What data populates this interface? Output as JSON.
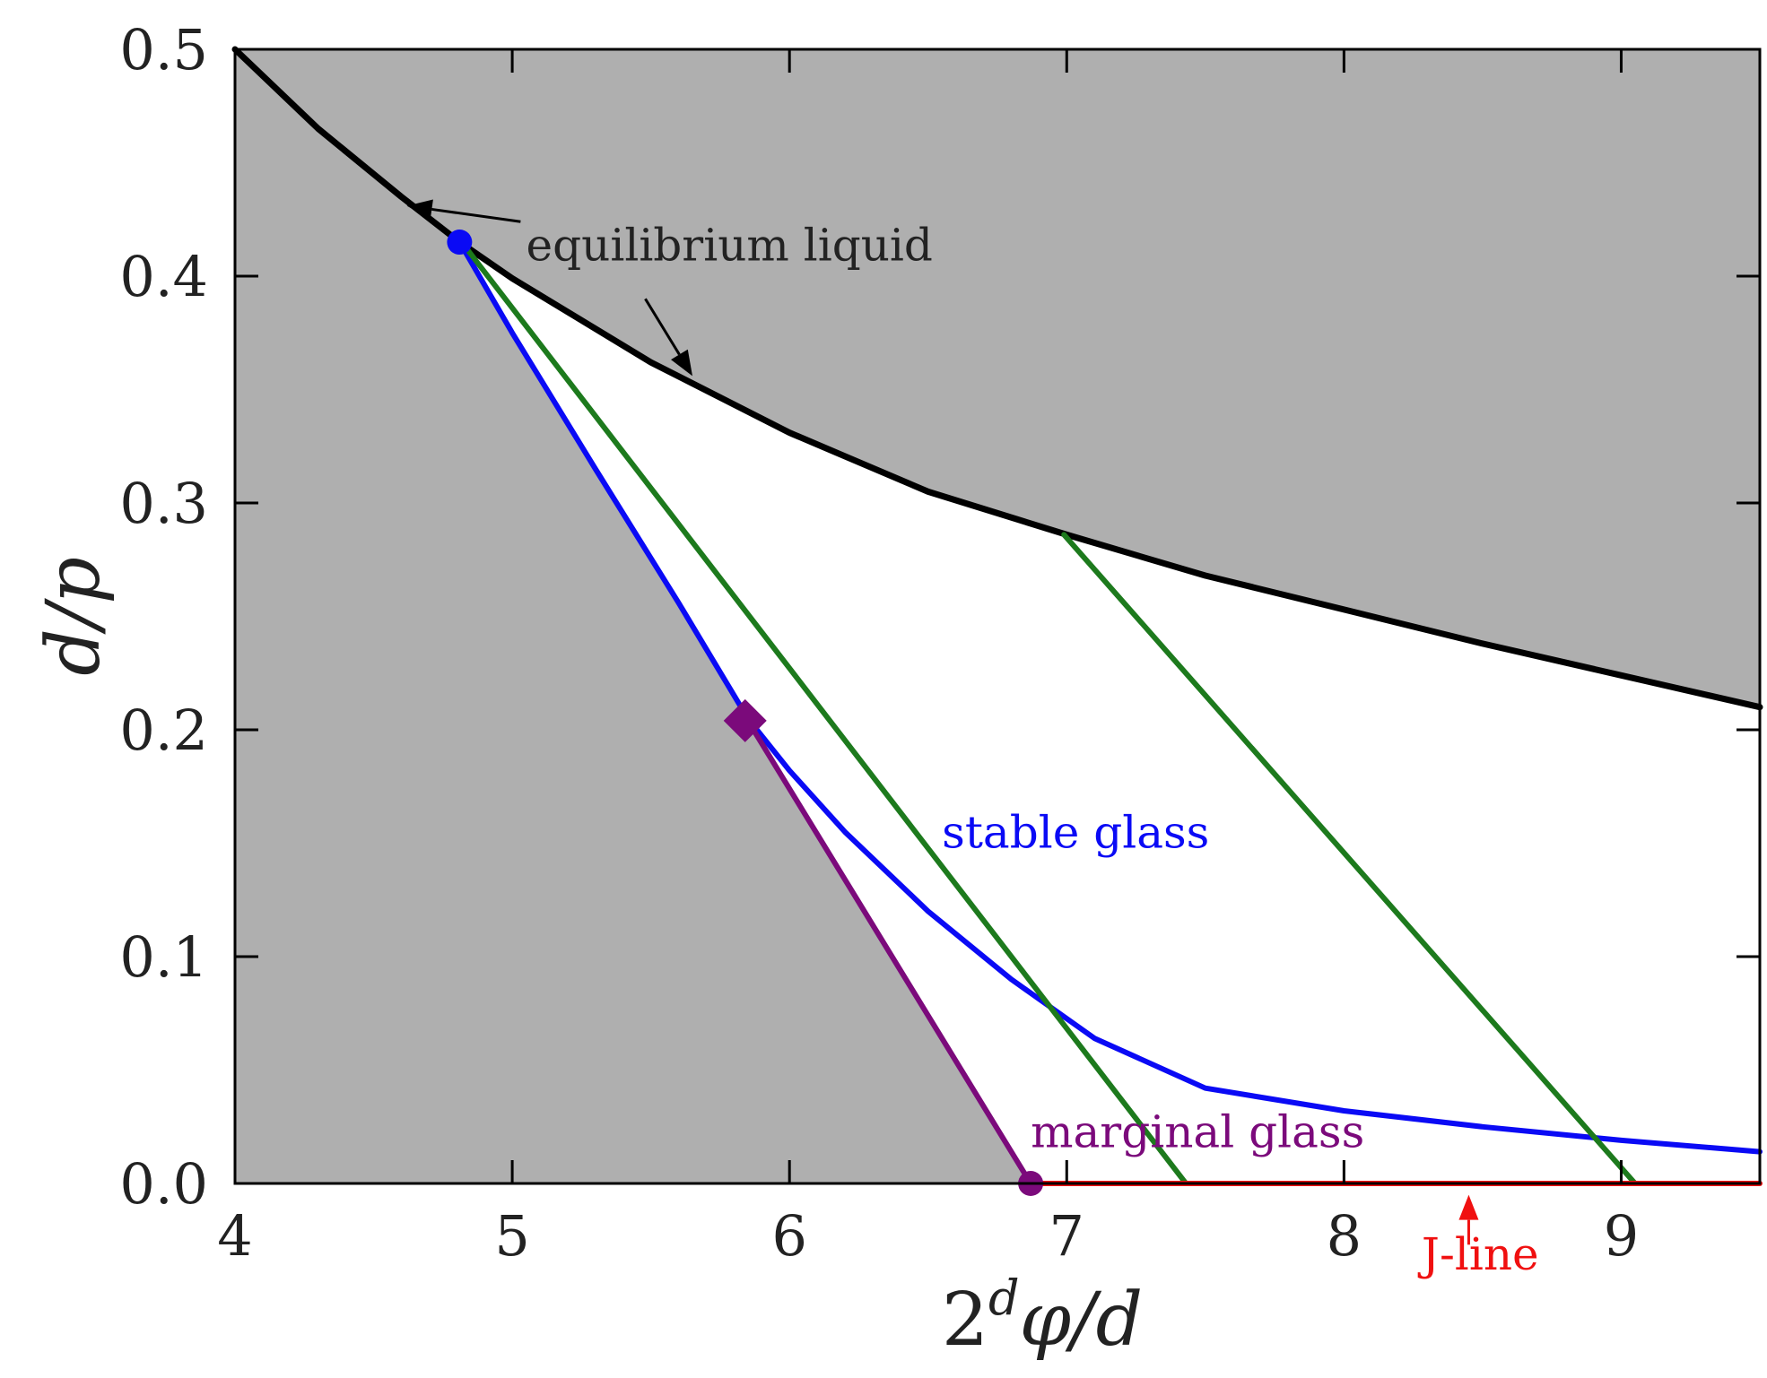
{
  "chart_data": {
    "type": "line",
    "xlabel": {
      "base": "2",
      "sup": "d",
      "rest": "φ/d"
    },
    "ylabel": "d/p",
    "xlim": [
      4,
      9.5
    ],
    "ylim": [
      0,
      0.5
    ],
    "xticks": [
      "4",
      "5",
      "6",
      "7",
      "8",
      "9"
    ],
    "yticks": [
      "0.0",
      "0.1",
      "0.2",
      "0.3",
      "0.4",
      "0.5"
    ],
    "grid": false,
    "colors": {
      "shade": "#afafaf",
      "liquid": "#000000",
      "stable": "#0a0af5",
      "marginal": "#7b0a7b",
      "green": "#1d7a1d",
      "jline": "#f01010",
      "text": "#222222"
    },
    "annotations": [
      {
        "text": "equilibrium liquid",
        "x": 5.05,
        "y": 0.407,
        "color": "#222222"
      },
      {
        "text": "stable glass",
        "x": 6.55,
        "y": 0.148,
        "color": "#0a0af5"
      },
      {
        "text": "marginal glass",
        "x": 6.87,
        "y": 0.016,
        "color": "#7b0a7b"
      },
      {
        "text": "J-line",
        "x": 8.28,
        "y": -0.038,
        "color": "#f01010"
      }
    ],
    "series": [
      {
        "key": "liquid",
        "color": "#000000",
        "x": [
          4,
          4.3,
          4.6,
          4.81,
          5.0,
          5.5,
          6.0,
          6.5,
          7.0,
          7.5,
          8.0,
          8.5,
          9.0,
          9.5
        ],
        "y": [
          0.5,
          0.465,
          0.435,
          0.415,
          0.399,
          0.362,
          0.331,
          0.305,
          0.286,
          0.268,
          0.253,
          0.238,
          0.224,
          0.21
        ]
      },
      {
        "key": "stable",
        "color": "#0a0af5",
        "x": [
          4.81,
          5.0,
          5.3,
          5.6,
          5.85,
          6.0,
          6.2,
          6.5,
          6.8,
          7.1,
          7.5,
          8.0,
          8.5,
          9.0,
          9.5
        ],
        "y": [
          0.415,
          0.375,
          0.315,
          0.256,
          0.205,
          0.182,
          0.155,
          0.12,
          0.09,
          0.064,
          0.042,
          0.032,
          0.025,
          0.019,
          0.014
        ]
      },
      {
        "key": "marginal",
        "color": "#7b0a7b",
        "x": [
          5.85,
          6.87
        ],
        "y": [
          0.204,
          0.0
        ]
      },
      {
        "key": "green1",
        "color": "#1d7a1d",
        "x": [
          4.83,
          7.43
        ],
        "y": [
          0.413,
          0.0
        ]
      },
      {
        "key": "green2",
        "color": "#1d7a1d",
        "x": [
          6.99,
          9.05
        ],
        "y": [
          0.286,
          0.0
        ]
      },
      {
        "key": "jline",
        "color": "#f01010",
        "x": [
          6.87,
          9.5
        ],
        "y": [
          0.0,
          0.0
        ]
      }
    ],
    "markers": [
      {
        "shape": "circle",
        "x": 4.81,
        "y": 0.415,
        "color": "#0a0af5"
      },
      {
        "shape": "diamond",
        "x": 5.84,
        "y": 0.204,
        "color": "#7b0a7b"
      },
      {
        "shape": "circle",
        "x": 6.87,
        "y": 0.0,
        "color": "#7b0a7b"
      }
    ],
    "arrows": [
      {
        "from": [
          5.03,
          0.424
        ],
        "to": [
          4.62,
          0.431
        ],
        "color": "#000000"
      },
      {
        "from": [
          5.48,
          0.39
        ],
        "to": [
          5.65,
          0.356
        ],
        "color": "#000000"
      },
      {
        "from": [
          8.45,
          -0.027
        ],
        "to": [
          8.45,
          -0.005
        ],
        "color": "#f01010"
      }
    ]
  }
}
